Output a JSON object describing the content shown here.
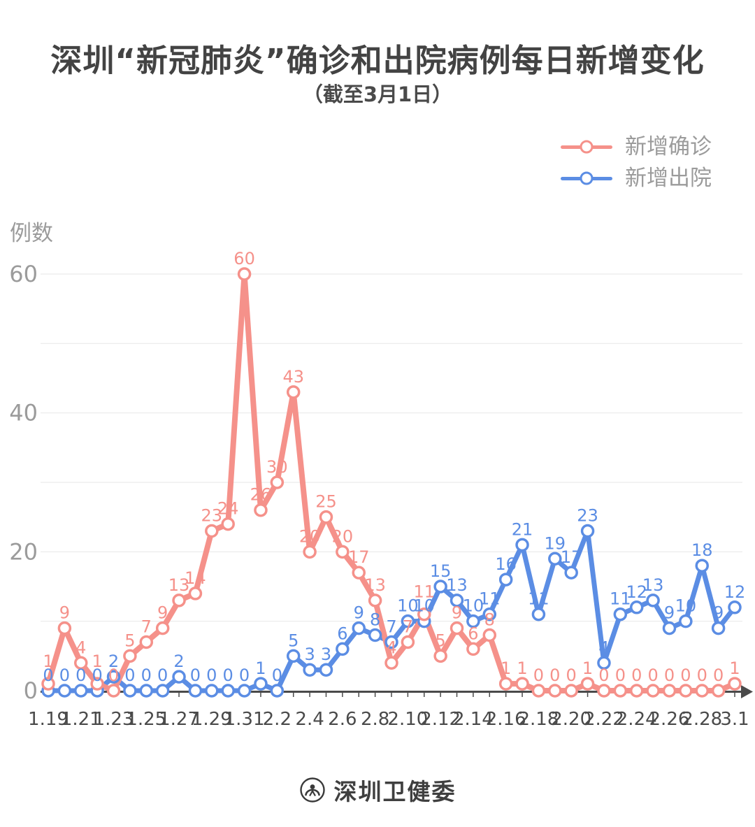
{
  "header": {
    "title": "深圳“新冠肺炎”确诊和出院病例每日新增变化",
    "subtitle": "（截至3月1日）"
  },
  "legend": {
    "items": [
      {
        "key": "confirmed",
        "label": "新增确诊",
        "color": "#f5918a"
      },
      {
        "key": "discharged",
        "label": "新增出院",
        "color": "#5b8de4"
      }
    ],
    "position": "top-right"
  },
  "chart_data": {
    "type": "line",
    "title": "深圳“新冠肺炎”确诊和出院病例每日新增变化（截至3月1日）",
    "xlabel": "",
    "ylabel": "例数",
    "categories": [
      "1.19",
      "1.20",
      "1.21",
      "1.22",
      "1.23",
      "1.24",
      "1.25",
      "1.26",
      "1.27",
      "1.28",
      "1.29",
      "1.30",
      "1.31",
      "2.1",
      "2.2",
      "2.3",
      "2.4",
      "2.5",
      "2.6",
      "2.7",
      "2.8",
      "2.9",
      "2.10",
      "2.11",
      "2.12",
      "2.13",
      "2.14",
      "2.15",
      "2.16",
      "2.17",
      "2.18",
      "2.19",
      "2.20",
      "2.21",
      "2.22",
      "2.23",
      "2.24",
      "2.25",
      "2.26",
      "2.27",
      "2.28",
      "2.29",
      "3.1"
    ],
    "x_tick_labels_shown": [
      "1.19",
      "1.21",
      "1.23",
      "1.25",
      "1.27",
      "1.29",
      "1.31",
      "2.2",
      "2.4",
      "2.6",
      "2.8",
      "2.10",
      "2.12",
      "2.14",
      "2.16",
      "2.18",
      "2.20",
      "2.22",
      "2.24",
      "2.26",
      "2.28",
      "3.1"
    ],
    "series": [
      {
        "name": "新增确诊",
        "color": "#f5918a",
        "values": [
          1,
          9,
          4,
          1,
          0,
          5,
          7,
          9,
          13,
          14,
          23,
          24,
          60,
          26,
          30,
          43,
          20,
          25,
          20,
          17,
          13,
          4,
          7,
          11,
          5,
          9,
          6,
          8,
          1,
          1,
          0,
          0,
          0,
          1,
          0,
          0,
          0,
          0,
          0,
          0,
          0,
          0,
          1
        ]
      },
      {
        "name": "新增出院",
        "color": "#5b8de4",
        "values": [
          0,
          0,
          0,
          0,
          2,
          0,
          0,
          0,
          2,
          0,
          0,
          0,
          0,
          1,
          0,
          5,
          3,
          3,
          6,
          9,
          8,
          7,
          10,
          10,
          15,
          13,
          10,
          11,
          16,
          21,
          11,
          19,
          17,
          23,
          4,
          11,
          12,
          13,
          9,
          10,
          18,
          9,
          12
        ]
      }
    ],
    "ylim": [
      0,
      62
    ],
    "yticks": [
      0,
      20,
      40,
      60
    ],
    "grid": "horizontal, every 10 units",
    "point_labels": "every point labeled with its value",
    "legend_position": "top-right"
  },
  "colors": {
    "confirmed": "#f5918a",
    "discharged": "#5b8de4",
    "grid": "#eaeaea",
    "axis": "#4a4a4a",
    "y_tick_text": "#9b9b9b",
    "x_tick_text": "#4a4a4a",
    "title_text": "#434343"
  },
  "footer": {
    "brand": "深圳卫健委"
  }
}
